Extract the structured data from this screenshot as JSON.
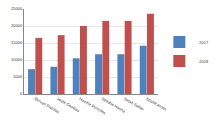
{
  "chart_data": {
    "type": "bar",
    "categories": [
      "Burvan Pistolas",
      "Jesht Geolitas",
      "Haarhe Furnoles",
      "Seltahe Hanna",
      "Setah Sellier",
      "Spaldt Armin"
    ],
    "series": [
      {
        "name": "2017",
        "color": "#4f81bd",
        "values": [
          7300,
          8000,
          10500,
          11700,
          11700,
          14200
        ]
      },
      {
        "name": "2018",
        "color": "#c0504d",
        "values": [
          16500,
          17300,
          20000,
          21500,
          21500,
          23600
        ]
      }
    ],
    "ylim": [
      0,
      25000
    ],
    "yticks": [
      0,
      5000,
      10000,
      15000,
      20000,
      25000
    ],
    "grid": true,
    "legend": "right"
  }
}
